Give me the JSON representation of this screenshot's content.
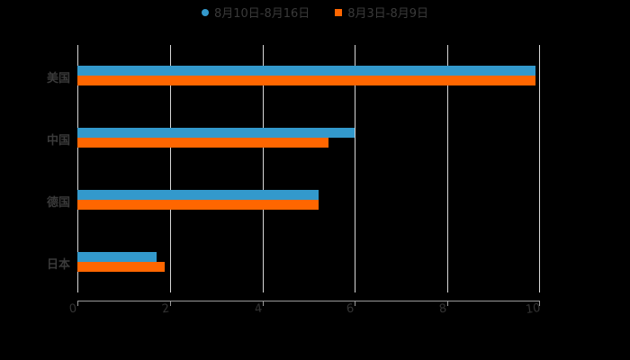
{
  "chart_data": {
    "type": "bar",
    "orientation": "horizontal",
    "categories": [
      "美国",
      "中国",
      "德国",
      "日本"
    ],
    "series": [
      {
        "name": "8月10日-8月16日",
        "color": "#3399cc",
        "values": [
          9.9,
          6.0,
          5.21,
          1.71
        ]
      },
      {
        "name": "8月3日-8月9日",
        "color": "#ff6600",
        "values": [
          9.9,
          5.43,
          5.21,
          1.89
        ]
      }
    ],
    "title": "",
    "xlabel": "",
    "ylabel": "",
    "xlim": [
      0,
      10
    ],
    "xticks": [
      "0",
      "2",
      "4",
      "6",
      "8",
      "10"
    ],
    "grid": true,
    "legend_position": "top"
  },
  "legend": {
    "series1": "8月10日-8月16日",
    "series2": "8月3日-8月9日"
  },
  "axis": {
    "ticks": [
      "0",
      "2",
      "4",
      "6",
      "8",
      "10"
    ]
  },
  "categories": [
    "美国",
    "中国",
    "德国",
    "日本"
  ]
}
